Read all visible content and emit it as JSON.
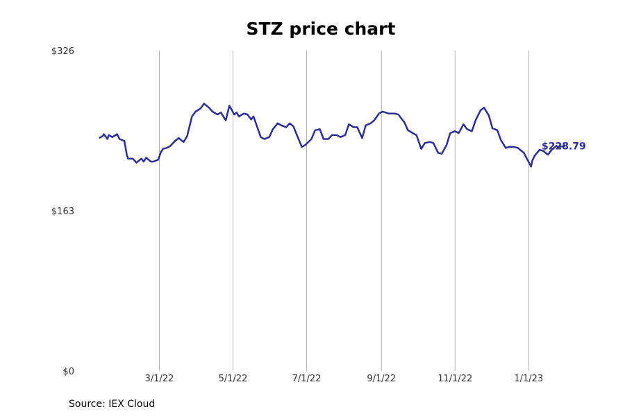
{
  "chart_data": {
    "type": "line",
    "title": "STZ price chart",
    "source": "Source: IEX Cloud",
    "ylim": [
      0,
      326
    ],
    "yticks": [
      {
        "value": 0,
        "label": "$0"
      },
      {
        "value": 163,
        "label": "$163"
      },
      {
        "value": 326,
        "label": "$326"
      }
    ],
    "xlim": [
      "2022-01-01",
      "2023-01-31"
    ],
    "xticks": [
      {
        "date": "2022-03-01",
        "label": "3/1/22"
      },
      {
        "date": "2022-05-01",
        "label": "5/1/22"
      },
      {
        "date": "2022-07-01",
        "label": "7/1/22"
      },
      {
        "date": "2022-09-01",
        "label": "9/1/22"
      },
      {
        "date": "2022-11-01",
        "label": "11/1/22"
      },
      {
        "date": "2023-01-01",
        "label": "1/1/23"
      }
    ],
    "grid": {
      "vertical": true,
      "horizontal": false
    },
    "line_color": "#2e2e8f",
    "end_label": "$228.79",
    "series": [
      {
        "x": [
          "2022-01-10",
          "2022-01-13",
          "2022-01-14",
          "2022-01-17",
          "2022-01-18",
          "2022-01-21",
          "2022-01-25",
          "2022-01-27",
          "2022-01-31",
          "2022-02-02",
          "2022-02-03",
          "2022-02-07",
          "2022-02-10",
          "2022-02-14",
          "2022-02-16",
          "2022-02-18",
          "2022-02-22",
          "2022-02-24",
          "2022-02-28",
          "2022-03-02",
          "2022-03-04",
          "2022-03-07",
          "2022-03-10",
          "2022-03-14",
          "2022-03-17",
          "2022-03-21",
          "2022-03-24",
          "2022-03-28",
          "2022-03-31",
          "2022-04-04",
          "2022-04-07",
          "2022-04-11",
          "2022-04-14",
          "2022-04-18",
          "2022-04-21",
          "2022-04-25",
          "2022-04-28",
          "2022-05-02",
          "2022-05-04",
          "2022-05-06",
          "2022-05-10",
          "2022-05-13",
          "2022-05-16",
          "2022-05-18",
          "2022-05-20",
          "2022-05-24",
          "2022-05-27",
          "2022-05-31",
          "2022-06-03",
          "2022-06-07",
          "2022-06-10",
          "2022-06-14",
          "2022-06-17",
          "2022-06-20",
          "2022-06-23",
          "2022-06-27",
          "2022-06-30",
          "2022-07-05",
          "2022-07-08",
          "2022-07-12",
          "2022-07-15",
          "2022-07-19",
          "2022-07-22",
          "2022-07-26",
          "2022-07-29",
          "2022-08-02",
          "2022-08-05",
          "2022-08-09",
          "2022-08-12",
          "2022-08-16",
          "2022-08-19",
          "2022-08-23",
          "2022-08-26",
          "2022-08-30",
          "2022-09-02",
          "2022-09-07",
          "2022-09-12",
          "2022-09-15",
          "2022-09-20",
          "2022-09-23",
          "2022-09-27",
          "2022-09-30",
          "2022-10-04",
          "2022-10-07",
          "2022-10-11",
          "2022-10-14",
          "2022-10-18",
          "2022-10-21",
          "2022-10-25",
          "2022-10-28",
          "2022-11-01",
          "2022-11-04",
          "2022-11-08",
          "2022-11-11",
          "2022-11-15",
          "2022-11-18",
          "2022-11-22",
          "2022-11-25",
          "2022-11-29",
          "2022-12-02",
          "2022-12-06",
          "2022-12-09",
          "2022-12-13",
          "2022-12-16",
          "2022-12-20",
          "2022-12-23",
          "2022-12-28",
          "2023-01-03",
          "2023-01-04",
          "2023-01-06",
          "2023-01-10",
          "2023-01-13",
          "2023-01-17",
          "2023-01-20",
          "2023-01-24",
          "2023-01-26",
          "2023-01-31"
        ],
        "y": [
          237,
          239,
          241,
          236,
          240,
          238,
          241,
          236,
          234,
          220,
          216,
          216,
          212,
          216,
          213,
          217,
          213,
          213,
          215,
          222,
          226,
          227,
          229,
          234,
          237,
          233,
          239,
          259,
          264,
          267,
          272,
          268,
          264,
          261,
          263,
          255,
          270,
          261,
          263,
          259,
          262,
          261,
          256,
          259,
          252,
          238,
          236,
          238,
          246,
          252,
          250,
          248,
          252,
          249,
          240,
          228,
          230,
          236,
          245,
          246,
          236,
          236,
          240,
          240,
          238,
          240,
          251,
          248,
          248,
          237,
          250,
          252,
          255,
          262,
          264,
          262,
          262,
          261,
          253,
          245,
          242,
          240,
          226,
          232,
          233,
          232,
          222,
          221,
          230,
          242,
          244,
          242,
          251,
          246,
          244,
          255,
          265,
          268,
          260,
          247,
          245,
          235,
          227,
          228,
          228,
          227,
          222,
          208,
          214,
          219,
          225,
          224,
          220,
          225,
          229,
          228,
          229
        ]
      }
    ]
  }
}
